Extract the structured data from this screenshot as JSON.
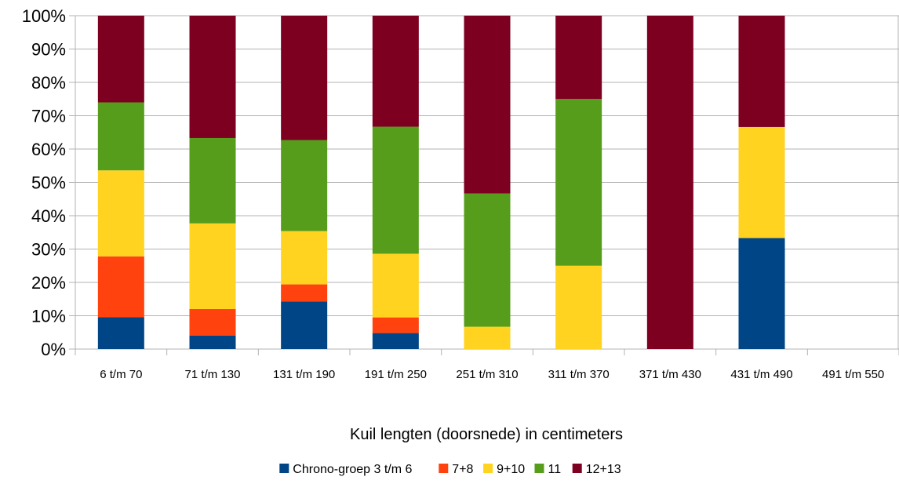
{
  "chart_data": {
    "type": "bar",
    "stacked": true,
    "percent": true,
    "categories": [
      "6 t/m 70",
      "71 t/m 130",
      "131 t/m 190",
      "191 t/m 250",
      "251 t/m 310",
      "311 t/m 370",
      "371 t/m 430",
      "431 t/m 490",
      "491 t/m 550"
    ],
    "series": [
      {
        "name": "Chrono-groep 3 t/m 6",
        "color": "#004586",
        "values": [
          9.6,
          4.0,
          14.3,
          4.8,
          0,
          0,
          0,
          33.3,
          0
        ]
      },
      {
        "name": "7+8",
        "color": "#ff420e",
        "values": [
          18.2,
          8.0,
          5.1,
          4.7,
          0,
          0,
          0,
          0,
          0
        ]
      },
      {
        "name": "9+10",
        "color": "#ffd320",
        "values": [
          25.8,
          25.7,
          16.0,
          19.1,
          6.7,
          25.0,
          0,
          33.3,
          0
        ]
      },
      {
        "name": "11",
        "color": "#579d1c",
        "values": [
          20.4,
          25.6,
          27.3,
          38.1,
          40.0,
          50.0,
          0,
          0,
          0
        ]
      },
      {
        "name": "12+13",
        "color": "#7e0021",
        "values": [
          26.0,
          36.7,
          37.3,
          33.3,
          53.3,
          25.0,
          100,
          33.4,
          0
        ]
      }
    ],
    "y_ticks": [
      "0%",
      "10%",
      "20%",
      "30%",
      "40%",
      "50%",
      "60%",
      "70%",
      "80%",
      "90%",
      "100%"
    ],
    "ylim": [
      0,
      100
    ],
    "xlabel": "Kuil lengten (doorsnede) in centimeters",
    "ylabel": "",
    "title": "",
    "grid": "horizontal",
    "legend_position": "bottom"
  }
}
